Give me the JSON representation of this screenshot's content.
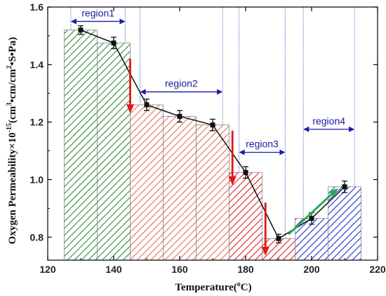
{
  "chart_data": {
    "type": "bar",
    "title": "",
    "xlabel": {
      "main": "Temperature(",
      "sup": "o",
      "tail": "C)"
    },
    "ylabel": {
      "p1": "Oxygen Permeability×10",
      "p2": "-15",
      "p3": "(cm",
      "p4": "3",
      "p5": "•cm/cm",
      "p6": "2",
      "p7": "•S•Pa)"
    },
    "xlim": [
      120,
      220
    ],
    "ylim": [
      0.72,
      1.6
    ],
    "xticks": [
      "120",
      "140",
      "160",
      "180",
      "200",
      "220"
    ],
    "yticks": [
      "0.8",
      "1.0",
      "1.2",
      "1.4",
      "1.6"
    ],
    "x": [
      130,
      140,
      150,
      160,
      170,
      180,
      190,
      200,
      210
    ],
    "values": [
      1.52,
      1.475,
      1.26,
      1.22,
      1.19,
      1.025,
      0.795,
      0.865,
      0.975
    ],
    "errors": [
      0.015,
      0.02,
      0.02,
      0.02,
      0.02,
      0.02,
      0.015,
      0.02,
      0.02
    ],
    "bar_colors": [
      "#2e8b3a",
      "#2e8b3a",
      "#e07055",
      "#e07055",
      "#e07055",
      "#e02020",
      "#e02020",
      "#1a2ed0",
      "#1a2ed0"
    ],
    "regions": [
      {
        "label": "region1",
        "x0": 127,
        "x1": 143.5,
        "y": 1.55,
        "bg": "#6060d0"
      },
      {
        "label": "region2",
        "x0": 148,
        "x1": 173,
        "y": 1.305,
        "bg": "#6060d0"
      },
      {
        "label": "region3",
        "x0": 178,
        "x1": 192,
        "y": 1.095,
        "bg": "#6060d0"
      },
      {
        "label": "region4",
        "x0": 197.5,
        "x1": 213,
        "y": 1.175,
        "bg": "#6060d0"
      }
    ],
    "trend_arrows": [
      {
        "x0": 145,
        "y0": 1.42,
        "x1": 145,
        "y1": 1.23,
        "color": "#e01818"
      },
      {
        "x0": 176,
        "y0": 1.17,
        "x1": 176,
        "y1": 0.98,
        "color": "#e01818"
      },
      {
        "x0": 186,
        "y0": 0.92,
        "x1": 186,
        "y1": 0.735,
        "color": "#e01818"
      },
      {
        "x0": 193,
        "y0": 0.81,
        "x1": 208,
        "y1": 0.97,
        "color": "#22aa55"
      }
    ],
    "line_color": "#111111",
    "grid": false,
    "legend": "none"
  }
}
